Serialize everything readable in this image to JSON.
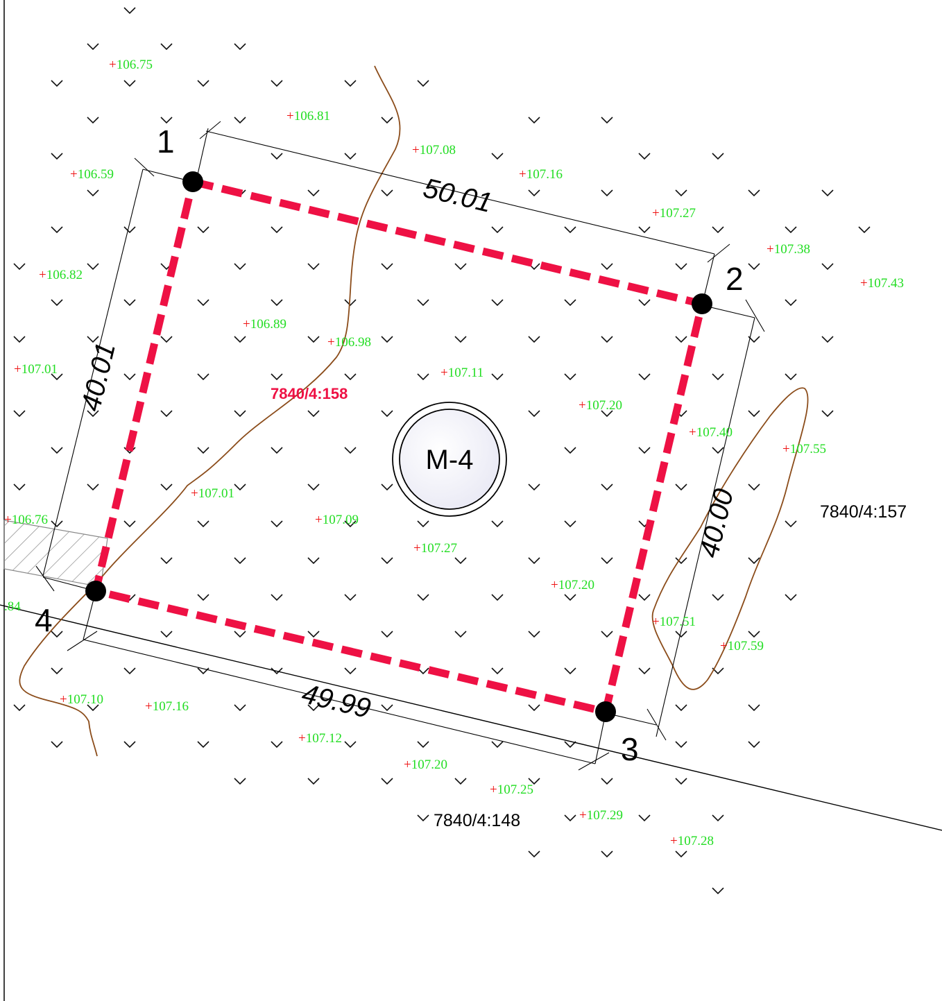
{
  "colors": {
    "boundary": "#ee1144",
    "contour": "#8b4c1a",
    "elevation_text": "#22dd22",
    "elevation_plus": "#ee1111",
    "dimension_line": "#000000"
  },
  "parcel": {
    "main_id": "7840/4:158",
    "neighbor_east": "7840/4:157",
    "neighbor_south": "7840/4:148"
  },
  "corners": [
    {
      "label": "1"
    },
    {
      "label": "2"
    },
    {
      "label": "3"
    },
    {
      "label": "4"
    }
  ],
  "dimensions": {
    "north": "50.01",
    "east": "40.00",
    "south": "49.99",
    "west": "40.01"
  },
  "marker": {
    "label": "M-4",
    "icon": "survey-marker-icon"
  },
  "elevations": [
    {
      "value": "106.75"
    },
    {
      "value": "106.81"
    },
    {
      "value": "107.08"
    },
    {
      "value": "106.59"
    },
    {
      "value": "107.16"
    },
    {
      "value": "107.27"
    },
    {
      "value": "107.38"
    },
    {
      "value": "107.43"
    },
    {
      "value": "106.82"
    },
    {
      "value": "106.89"
    },
    {
      "value": "106.98"
    },
    {
      "value": "107.01"
    },
    {
      "value": "107.11"
    },
    {
      "value": "107.20"
    },
    {
      "value": "107.40"
    },
    {
      "value": "107.55"
    },
    {
      "value": "107.01"
    },
    {
      "value": "107.09"
    },
    {
      "value": "106.76"
    },
    {
      "value": "107.27"
    },
    {
      "value": "107.20"
    },
    {
      "value": ".84"
    },
    {
      "value": "107.51"
    },
    {
      "value": "107.59"
    },
    {
      "value": "107.10"
    },
    {
      "value": "107.16"
    },
    {
      "value": "107.12"
    },
    {
      "value": "107.20"
    },
    {
      "value": "107.25"
    },
    {
      "value": "107.29"
    },
    {
      "value": "107.28"
    }
  ],
  "vegetation_icon": "grass-symbol-icon"
}
